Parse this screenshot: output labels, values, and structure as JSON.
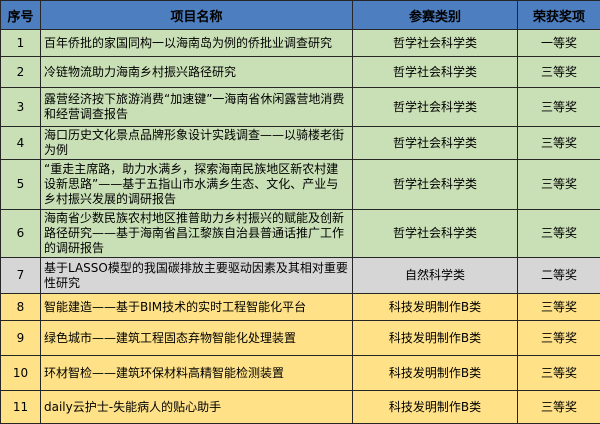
{
  "table": {
    "columns": [
      {
        "label": "序号"
      },
      {
        "label": "项目名称"
      },
      {
        "label": "参赛类别"
      },
      {
        "label": "荣获奖项"
      }
    ],
    "rows": [
      {
        "no": "1",
        "name": "百年侨批的家国同构一以海南岛为例的侨批业调查研究",
        "category": "哲学社会科学类",
        "award": "一等奖",
        "theme": "green"
      },
      {
        "no": "2",
        "name": "冷链物流助力海南乡村振兴路径研究",
        "category": "哲学社会科学类",
        "award": "三等奖",
        "theme": "green"
      },
      {
        "no": "3",
        "name": "露营经济按下旅游消费“加速键”一海南省休闲露营地消费和经营调查报告",
        "category": "哲学社会科学类",
        "award": "三等奖",
        "theme": "green"
      },
      {
        "no": "4",
        "name": "海口历史文化景点品牌形象设计实践调查——以骑楼老街为例",
        "category": "哲学社会科学类",
        "award": "三等奖",
        "theme": "green"
      },
      {
        "no": "5",
        "name": "“重走主席路，助力水满乡，探索海南民族地区新农村建设新思路”——基于五指山市水满乡生态、文化、产业与乡村振兴发展的调研报告",
        "category": "哲学社会科学类",
        "award": "三等奖",
        "theme": "green"
      },
      {
        "no": "6",
        "name": "海南省少数民族农村地区推普助力乡村振兴的赋能及创新路径研究——基于海南省昌江黎族自治县普通话推广工作的调研报告",
        "category": "哲学社会科学类",
        "award": "三等奖",
        "theme": "green"
      },
      {
        "no": "7",
        "name": "基于LASSO模型的我国碳排放主要驱动因素及其相对重要性研究",
        "category": "自然科学类",
        "award": "二等奖",
        "theme": "gray"
      },
      {
        "no": "8",
        "name": "智能建造——基于BIM技术的实时工程智能化平台",
        "category": "科技发明制作B类",
        "award": "三等奖",
        "theme": "yellow"
      },
      {
        "no": "9",
        "name": "绿色城市——建筑工程固态弃物智能化处理装置",
        "category": "科技发明制作B类",
        "award": "三等奖",
        "theme": "yellow"
      },
      {
        "no": "10",
        "name": "环材智检——建筑环保材料高精智能检测装置",
        "category": "科技发明制作B类",
        "award": "三等奖",
        "theme": "yellow"
      },
      {
        "no": "11",
        "name": "daily云护士-失能病人的贴心助手",
        "category": "科技发明制作B类",
        "award": "三等奖",
        "theme": "yellow"
      }
    ]
  },
  "colors": {
    "header_bg": "#4d7ebf",
    "green_bg": "#c9e0b6",
    "gray_bg": "#d6d6d6",
    "yellow_bg": "#ffe288",
    "border": "#262626",
    "text": "#000000"
  }
}
